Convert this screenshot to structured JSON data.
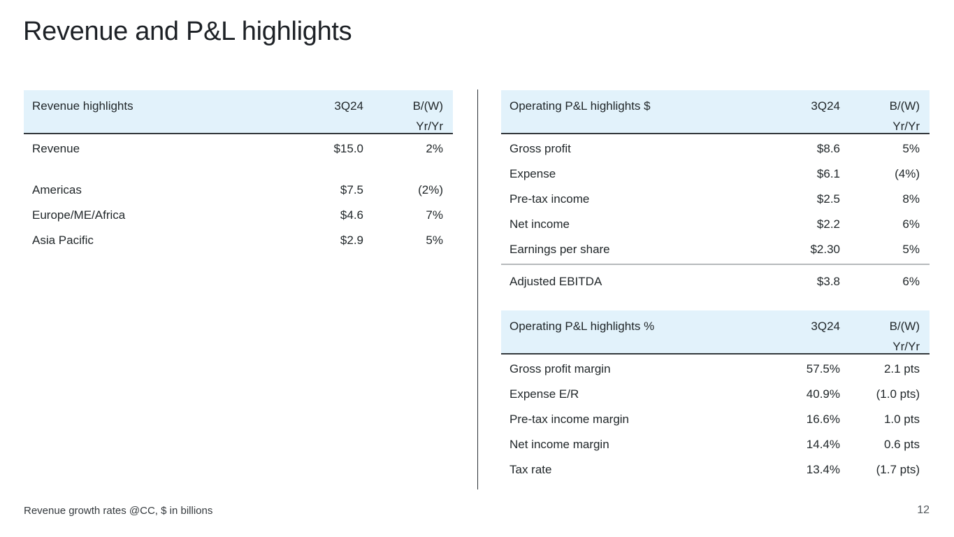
{
  "title": "Revenue and P&L highlights",
  "colors": {
    "header_bg": "#e2f2fb",
    "rule_dark": "#33383c",
    "rule_gray": "#b6b9bb",
    "divider": "#2c3237",
    "text": "#21272a"
  },
  "tables": {
    "revenue": {
      "header": {
        "label": "Revenue highlights",
        "col1": "3Q24",
        "col2_line1": "B/(W)",
        "col2_line2": "Yr/Yr"
      },
      "rows": [
        {
          "label": "Revenue",
          "value": "$15.0",
          "yoy": "2%",
          "gap_before": false
        },
        {
          "label": "Americas",
          "value": "$7.5",
          "yoy": "(2%)",
          "gap_before": true
        },
        {
          "label": "Europe/ME/Africa",
          "value": "$4.6",
          "yoy": "7%",
          "gap_before": false
        },
        {
          "label": "Asia Pacific",
          "value": "$2.9",
          "yoy": "5%",
          "gap_before": false
        }
      ]
    },
    "pnl_dollars": {
      "header": {
        "label": "Operating P&L highlights $",
        "col1": "3Q24",
        "col2_line1": "B/(W)",
        "col2_line2": "Yr/Yr"
      },
      "rows": [
        {
          "label": "Gross profit",
          "value": "$8.6",
          "yoy": "5%",
          "gap_before": false
        },
        {
          "label": "Expense",
          "value": "$6.1",
          "yoy": "(4%)",
          "gap_before": false
        },
        {
          "label": "Pre-tax income",
          "value": "$2.5",
          "yoy": "8%",
          "gap_before": false
        },
        {
          "label": "Net income",
          "value": "$2.2",
          "yoy": "6%",
          "gap_before": false
        },
        {
          "label": "Earnings per share",
          "value": "$2.30",
          "yoy": "5%",
          "gap_before": false
        }
      ]
    },
    "adjusted_ebitda": {
      "label": "Adjusted EBITDA",
      "value": "$3.8",
      "yoy": "6%"
    },
    "pnl_percent": {
      "header": {
        "label": "Operating P&L highlights %",
        "col1": "3Q24",
        "col2_line1": "B/(W)",
        "col2_line2": "Yr/Yr"
      },
      "rows": [
        {
          "label": "Gross profit margin",
          "value": "57.5%",
          "yoy": "2.1 pts",
          "gap_before": false
        },
        {
          "label": "Expense E/R",
          "value": "40.9%",
          "yoy": "(1.0 pts)",
          "gap_before": false
        },
        {
          "label": "Pre-tax income margin",
          "value": "16.6%",
          "yoy": "1.0 pts",
          "gap_before": false
        },
        {
          "label": "Net income margin",
          "value": "14.4%",
          "yoy": "0.6 pts",
          "gap_before": false
        },
        {
          "label": "Tax rate",
          "value": "13.4%",
          "yoy": "(1.7 pts)",
          "gap_before": false
        }
      ]
    }
  },
  "footer": {
    "footnote": "Revenue growth rates @CC, $ in billions",
    "page_number": "12"
  }
}
